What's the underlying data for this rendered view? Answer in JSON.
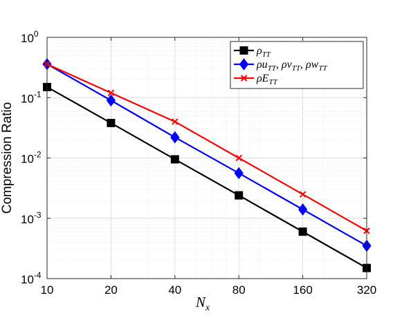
{
  "chart_data": {
    "type": "line",
    "x_scale": "log2",
    "y_scale": "log10",
    "x": [
      10,
      20,
      40,
      80,
      160,
      320
    ],
    "x_tick_labels": [
      "10",
      "20",
      "40",
      "80",
      "160",
      "320"
    ],
    "y_ticks": [
      {
        "value": 0.0001,
        "base": "10",
        "exp": "-4"
      },
      {
        "value": 0.001,
        "base": "10",
        "exp": "-3"
      },
      {
        "value": 0.01,
        "base": "10",
        "exp": "-2"
      },
      {
        "value": 0.1,
        "base": "10",
        "exp": "-1"
      },
      {
        "value": 1,
        "base": "10",
        "exp": "0"
      }
    ],
    "xlim": [
      10,
      320
    ],
    "ylim": [
      0.0001,
      1
    ],
    "xlabel_main": "N",
    "xlabel_sub": "x",
    "ylabel": "Compression Ratio",
    "grid": true,
    "legend_position": "top-right",
    "series": [
      {
        "name_main": "ρ",
        "name_sub": "TT",
        "name_tail": "",
        "color": "#000000",
        "marker": "square",
        "values": [
          0.15,
          0.038,
          0.0095,
          0.0024,
          0.0006,
          0.00015
        ]
      },
      {
        "name_main": "ρu",
        "name_sub": "TT",
        "name_tail": ", ρv",
        "name_sub2": "TT",
        "name_tail2": ", ρw",
        "name_sub3": "TT",
        "color": "#0000ff",
        "marker": "diamond",
        "values": [
          0.36,
          0.09,
          0.022,
          0.0056,
          0.0014,
          0.00035
        ]
      },
      {
        "name_main": "ρE",
        "name_sub": "TT",
        "name_tail": "",
        "color": "#ff0000",
        "marker": "x",
        "values": [
          0.36,
          0.12,
          0.04,
          0.01,
          0.0025,
          0.00062
        ]
      }
    ]
  }
}
